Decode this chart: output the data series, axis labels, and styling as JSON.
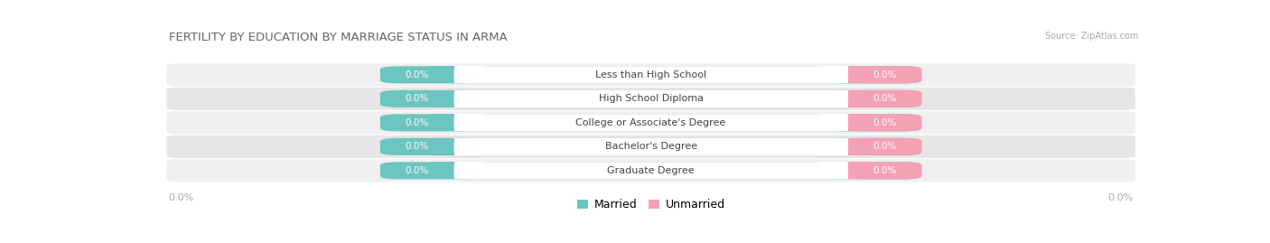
{
  "title": "FERTILITY BY EDUCATION BY MARRIAGE STATUS IN ARMA",
  "source": "Source: ZipAtlas.com",
  "categories": [
    "Less than High School",
    "High School Diploma",
    "College or Associate's Degree",
    "Bachelor's Degree",
    "Graduate Degree"
  ],
  "married_values": [
    0.0,
    0.0,
    0.0,
    0.0,
    0.0
  ],
  "unmarried_values": [
    0.0,
    0.0,
    0.0,
    0.0,
    0.0
  ],
  "married_color": "#6dc5c1",
  "unmarried_color": "#f4a0b5",
  "row_bg_even": "#f0f0f0",
  "row_bg_odd": "#e6e6e6",
  "label_text_color": "#444444",
  "value_label_color": "#ffffff",
  "title_color": "#666666",
  "source_color": "#aaaaaa",
  "axis_label_left": "0.0%",
  "axis_label_right": "0.0%",
  "legend_married": "Married",
  "legend_unmarried": "Unmarried",
  "background_color": "#ffffff",
  "title_fontsize": 9.5,
  "source_fontsize": 7,
  "cat_fontsize": 8,
  "val_fontsize": 7.5,
  "axis_fontsize": 8
}
